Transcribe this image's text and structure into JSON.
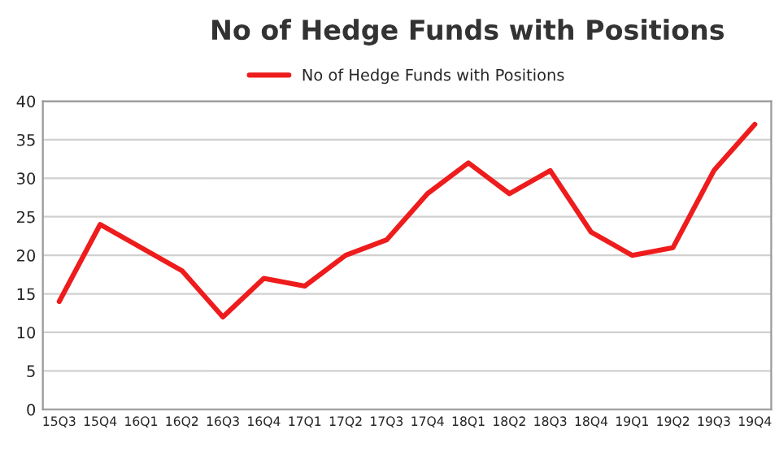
{
  "chart_data": {
    "type": "line",
    "title": "No of Hedge Funds with Positions",
    "categories": [
      "15Q3",
      "15Q4",
      "16Q1",
      "16Q2",
      "16Q3",
      "16Q4",
      "17Q1",
      "17Q2",
      "17Q3",
      "17Q4",
      "18Q1",
      "18Q2",
      "18Q3",
      "18Q4",
      "19Q1",
      "19Q2",
      "19Q3",
      "19Q4"
    ],
    "series": [
      {
        "name": "No of Hedge Funds with Positions",
        "color": "#ee1c1c",
        "values": [
          14,
          24,
          21,
          18,
          12,
          17,
          16,
          20,
          22,
          28,
          32,
          28,
          31,
          23,
          20,
          21,
          31,
          37
        ]
      }
    ],
    "ylim": [
      0,
      40
    ],
    "yticks": [
      0,
      5,
      10,
      15,
      20,
      25,
      30,
      35,
      40
    ],
    "grid": "y",
    "legend": "top",
    "marker": "none",
    "line_style": "solid"
  }
}
